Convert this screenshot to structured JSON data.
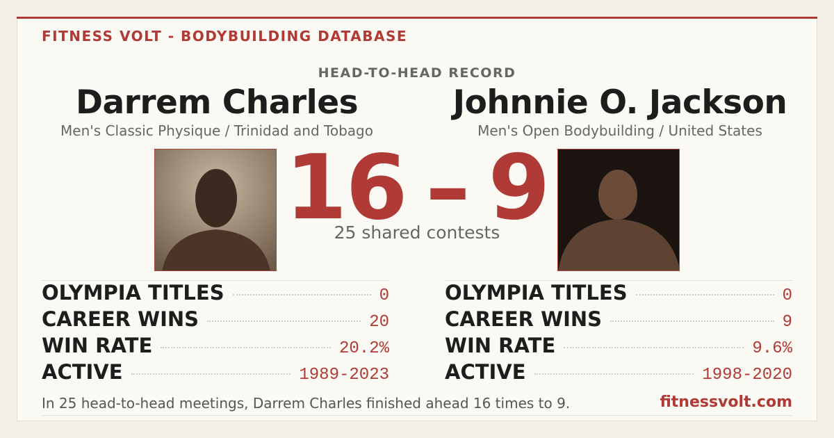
{
  "header": {
    "brand": "FITNESS VOLT - BODYBUILDING DATABASE",
    "subtitle": "HEAD-TO-HEAD RECORD"
  },
  "left": {
    "name": "Darrem Charles",
    "division": "Men's Classic Physique / Trinidad and Tobago",
    "stats": [
      {
        "label": "OLYMPIA TITLES",
        "value": "0"
      },
      {
        "label": "CAREER WINS",
        "value": "20"
      },
      {
        "label": "WIN RATE",
        "value": "20.2%"
      },
      {
        "label": "ACTIVE",
        "value": "1989-2023"
      }
    ]
  },
  "right": {
    "name": "Johnnie O. Jackson",
    "division": "Men's Open Bodybuilding / United States",
    "stats": [
      {
        "label": "OLYMPIA TITLES",
        "value": "0"
      },
      {
        "label": "CAREER WINS",
        "value": "9"
      },
      {
        "label": "WIN RATE",
        "value": "9.6%"
      },
      {
        "label": "ACTIVE",
        "value": "1998-2020"
      }
    ]
  },
  "score": {
    "left": "16",
    "separator": "–",
    "right": "9",
    "caption": "25 shared contests"
  },
  "footer": {
    "summary": "In 25 head-to-head meetings, Darrem Charles finished ahead 16 times to 9.",
    "site": "fitnessvolt.com"
  }
}
